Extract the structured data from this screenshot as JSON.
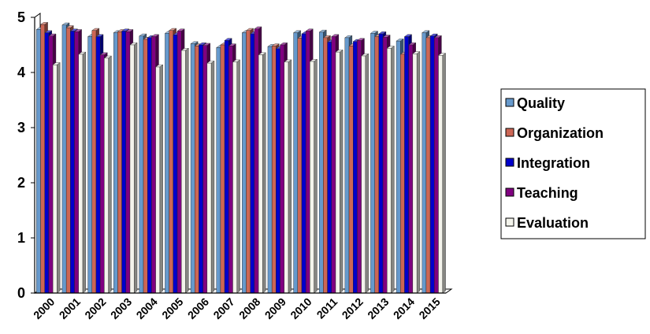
{
  "chart_data": {
    "type": "bar",
    "categories": [
      "2000",
      "2001",
      "2002",
      "2003",
      "2004",
      "2005",
      "2006",
      "2007",
      "2008",
      "2009",
      "2010",
      "2011",
      "2012",
      "2013",
      "2014",
      "2015"
    ],
    "series": [
      {
        "name": "Quality",
        "color": "#6699cc",
        "values": [
          4.78,
          4.86,
          4.65,
          4.72,
          4.66,
          4.71,
          4.52,
          4.45,
          4.72,
          4.47,
          4.72,
          4.73,
          4.63,
          4.71,
          4.57,
          4.72
        ]
      },
      {
        "name": "Organization",
        "color": "#cc6655",
        "values": [
          4.87,
          4.81,
          4.76,
          4.74,
          4.6,
          4.76,
          4.48,
          4.5,
          4.76,
          4.48,
          4.62,
          4.63,
          4.48,
          4.65,
          4.33,
          4.63
        ]
      },
      {
        "name": "Integration",
        "color": "#0000cc",
        "values": [
          4.72,
          4.75,
          4.65,
          4.75,
          4.63,
          4.68,
          4.5,
          4.58,
          4.7,
          4.43,
          4.7,
          4.55,
          4.56,
          4.7,
          4.65,
          4.66
        ]
      },
      {
        "name": "Teaching",
        "color": "#800080",
        "values": [
          4.66,
          4.74,
          4.32,
          4.74,
          4.65,
          4.75,
          4.49,
          4.48,
          4.79,
          4.5,
          4.75,
          4.65,
          4.58,
          4.64,
          4.5,
          4.63
        ]
      },
      {
        "name": "Evaluation",
        "color": "#f4f4ec",
        "values": [
          4.14,
          4.33,
          4.26,
          4.5,
          4.1,
          4.4,
          4.17,
          4.19,
          4.32,
          4.19,
          4.2,
          4.37,
          4.3,
          4.44,
          4.34,
          4.31
        ]
      }
    ],
    "y_ticks": [
      "0",
      "1",
      "2",
      "3",
      "4",
      "5"
    ],
    "ylim": [
      0,
      5
    ],
    "legend_position": "right",
    "grid": false,
    "bar_style": "3d"
  }
}
